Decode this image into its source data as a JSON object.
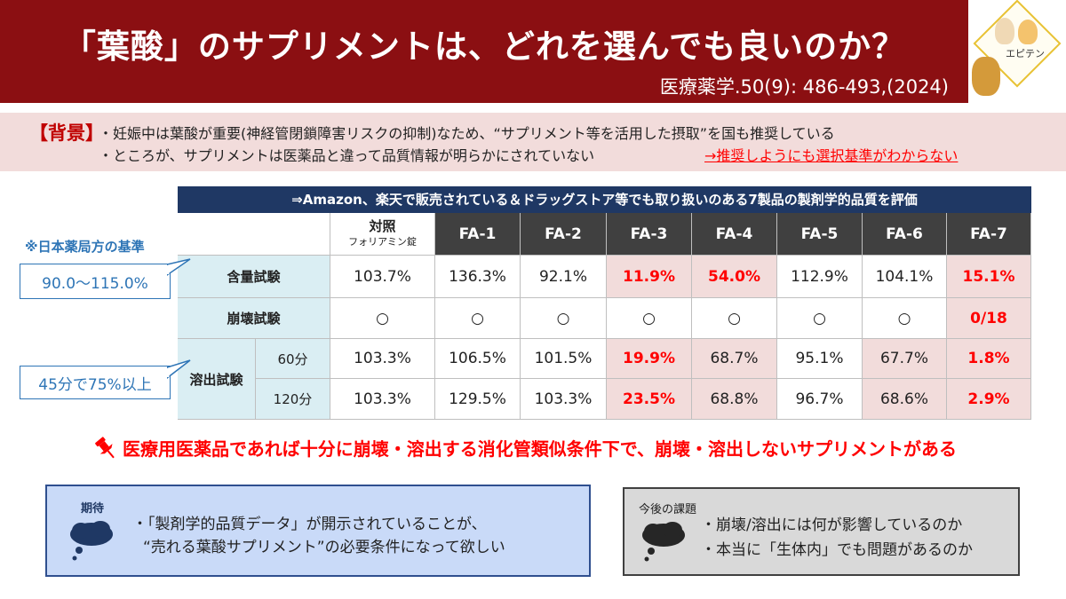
{
  "header": {
    "title": "「葉酸」のサプリメントは、どれを選んでも良いのか？",
    "citation": "医療薬学.50(9): 486-493,(2024)",
    "logo_text": "エピテン",
    "logo_icon": "bunny-tempura-logo",
    "bg_color": "#8b0f12"
  },
  "background": {
    "label": "【背景】",
    "line1": "・妊娠中は葉酸が重要(神経管閉鎖障害リスクの抑制)なため、“サプリメント等を活用した摂取”を国も推奨している",
    "line2": "・ところが、サプリメントは医薬品と違って品質情報が明らかにされていない",
    "emphasis": "→推奨しようにも選択基準がわからない"
  },
  "table": {
    "caption": "⇒Amazon、楽天で販売されている＆ドラッグストア等でも取り扱いのある7製品の製剤学的品質を評価",
    "control_label": "対照",
    "control_sub": "フォリアミン錠",
    "columns": [
      "FA-1",
      "FA-2",
      "FA-3",
      "FA-4",
      "FA-5",
      "FA-6",
      "FA-7"
    ],
    "rows": {
      "content": {
        "label": "含量試験",
        "values": [
          "103.7%",
          "136.3%",
          "92.1%",
          "11.9%",
          "54.0%",
          "112.9%",
          "104.1%",
          "15.1%"
        ]
      },
      "disintegration": {
        "label": "崩壊試験",
        "values": [
          "○",
          "○",
          "○",
          "○",
          "○",
          "○",
          "○",
          "0/18"
        ]
      },
      "dissolution_label": "溶出試験",
      "dissolution_60": {
        "label": "60分",
        "values": [
          "103.3%",
          "106.5%",
          "101.5%",
          "19.9%",
          "68.7%",
          "95.1%",
          "67.7%",
          "1.8%"
        ]
      },
      "dissolution_120": {
        "label": "120分",
        "values": [
          "103.3%",
          "129.5%",
          "103.3%",
          "23.5%",
          "68.8%",
          "96.7%",
          "68.6%",
          "2.9%"
        ]
      }
    }
  },
  "notes": {
    "standard_title": "※日本薬局方の基準",
    "standard_range": "90.0～115.0%",
    "dissolution_standard": "45分で75%以上"
  },
  "conclusion": {
    "icon": "pushpin-icon",
    "text": "医療用医薬品であれば十分に崩壊・溶出する消化管類似条件下で、崩壊・溶出しないサプリメントがある"
  },
  "expectation": {
    "label": "期待",
    "line1": "・「製剤学的品質データ」が開示されていることが、",
    "line2": "“売れる葉酸サプリメント”の必要条件になって欲しい",
    "icon": "thought-cloud-icon"
  },
  "future_issues": {
    "label": "今後の課題",
    "line1": "・崩壊/溶出には何が影響しているのか",
    "line2": "・本当に「生体内」でも問題があるのか",
    "icon": "thought-cloud-icon"
  },
  "colors": {
    "danger": "#ff0000",
    "highlight_bg": "#f2dcdb",
    "row_header_bg": "#daeef3",
    "col_header_bg": "#404040",
    "caption_bg": "#1f3864",
    "note_blue": "#2e75b6"
  }
}
